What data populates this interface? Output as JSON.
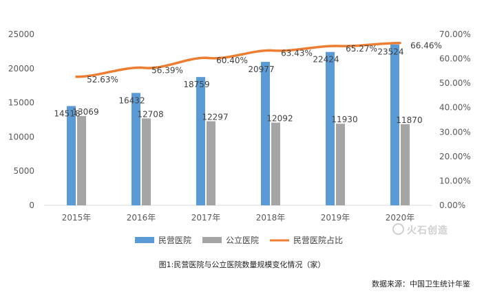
{
  "caption": "图1:民营医院与公立医院数量规模变化情况（家）",
  "source": "数据来源：中国卫生统计年鉴",
  "watermark": "火石创造",
  "colors": {
    "private": "#5b9bd5",
    "public": "#a5a5a5",
    "share": "#ed7d31"
  },
  "chart_data": {
    "type": "bar",
    "categories": [
      "2015年",
      "2016年",
      "2017年",
      "2018年",
      "2019年",
      "2020年"
    ],
    "series": [
      {
        "name": "民营医院",
        "kind": "bar",
        "axis": "left",
        "values": [
          14518,
          16432,
          18759,
          20977,
          22424,
          23524
        ],
        "labels": [
          "14518",
          "16432",
          "18759",
          "20977",
          "22424",
          "23524"
        ]
      },
      {
        "name": "公立医院",
        "kind": "bar",
        "axis": "left",
        "values": [
          13069,
          12708,
          12297,
          12092,
          11930,
          11870
        ],
        "labels": [
          "13069",
          "12708",
          "12297",
          "12092",
          "11930",
          "11870"
        ]
      },
      {
        "name": "民营医院占比",
        "kind": "line",
        "axis": "right",
        "values": [
          52.63,
          56.39,
          60.4,
          63.43,
          65.27,
          66.46
        ],
        "labels": [
          "52.63%",
          "56.39%",
          "60.40%",
          "63.43%",
          "65.27%",
          "66.46%"
        ]
      }
    ],
    "y_left": {
      "min": 0,
      "max": 25000,
      "ticks": [
        "0",
        "5000",
        "10000",
        "15000",
        "20000",
        "25000"
      ]
    },
    "y_right": {
      "min": 0,
      "max": 70,
      "ticks": [
        "0.00%",
        "10.00%",
        "20.00%",
        "30.00%",
        "40.00%",
        "50.00%",
        "60.00%",
        "70.00%"
      ]
    },
    "grid": false,
    "legend_position": "bottom"
  }
}
